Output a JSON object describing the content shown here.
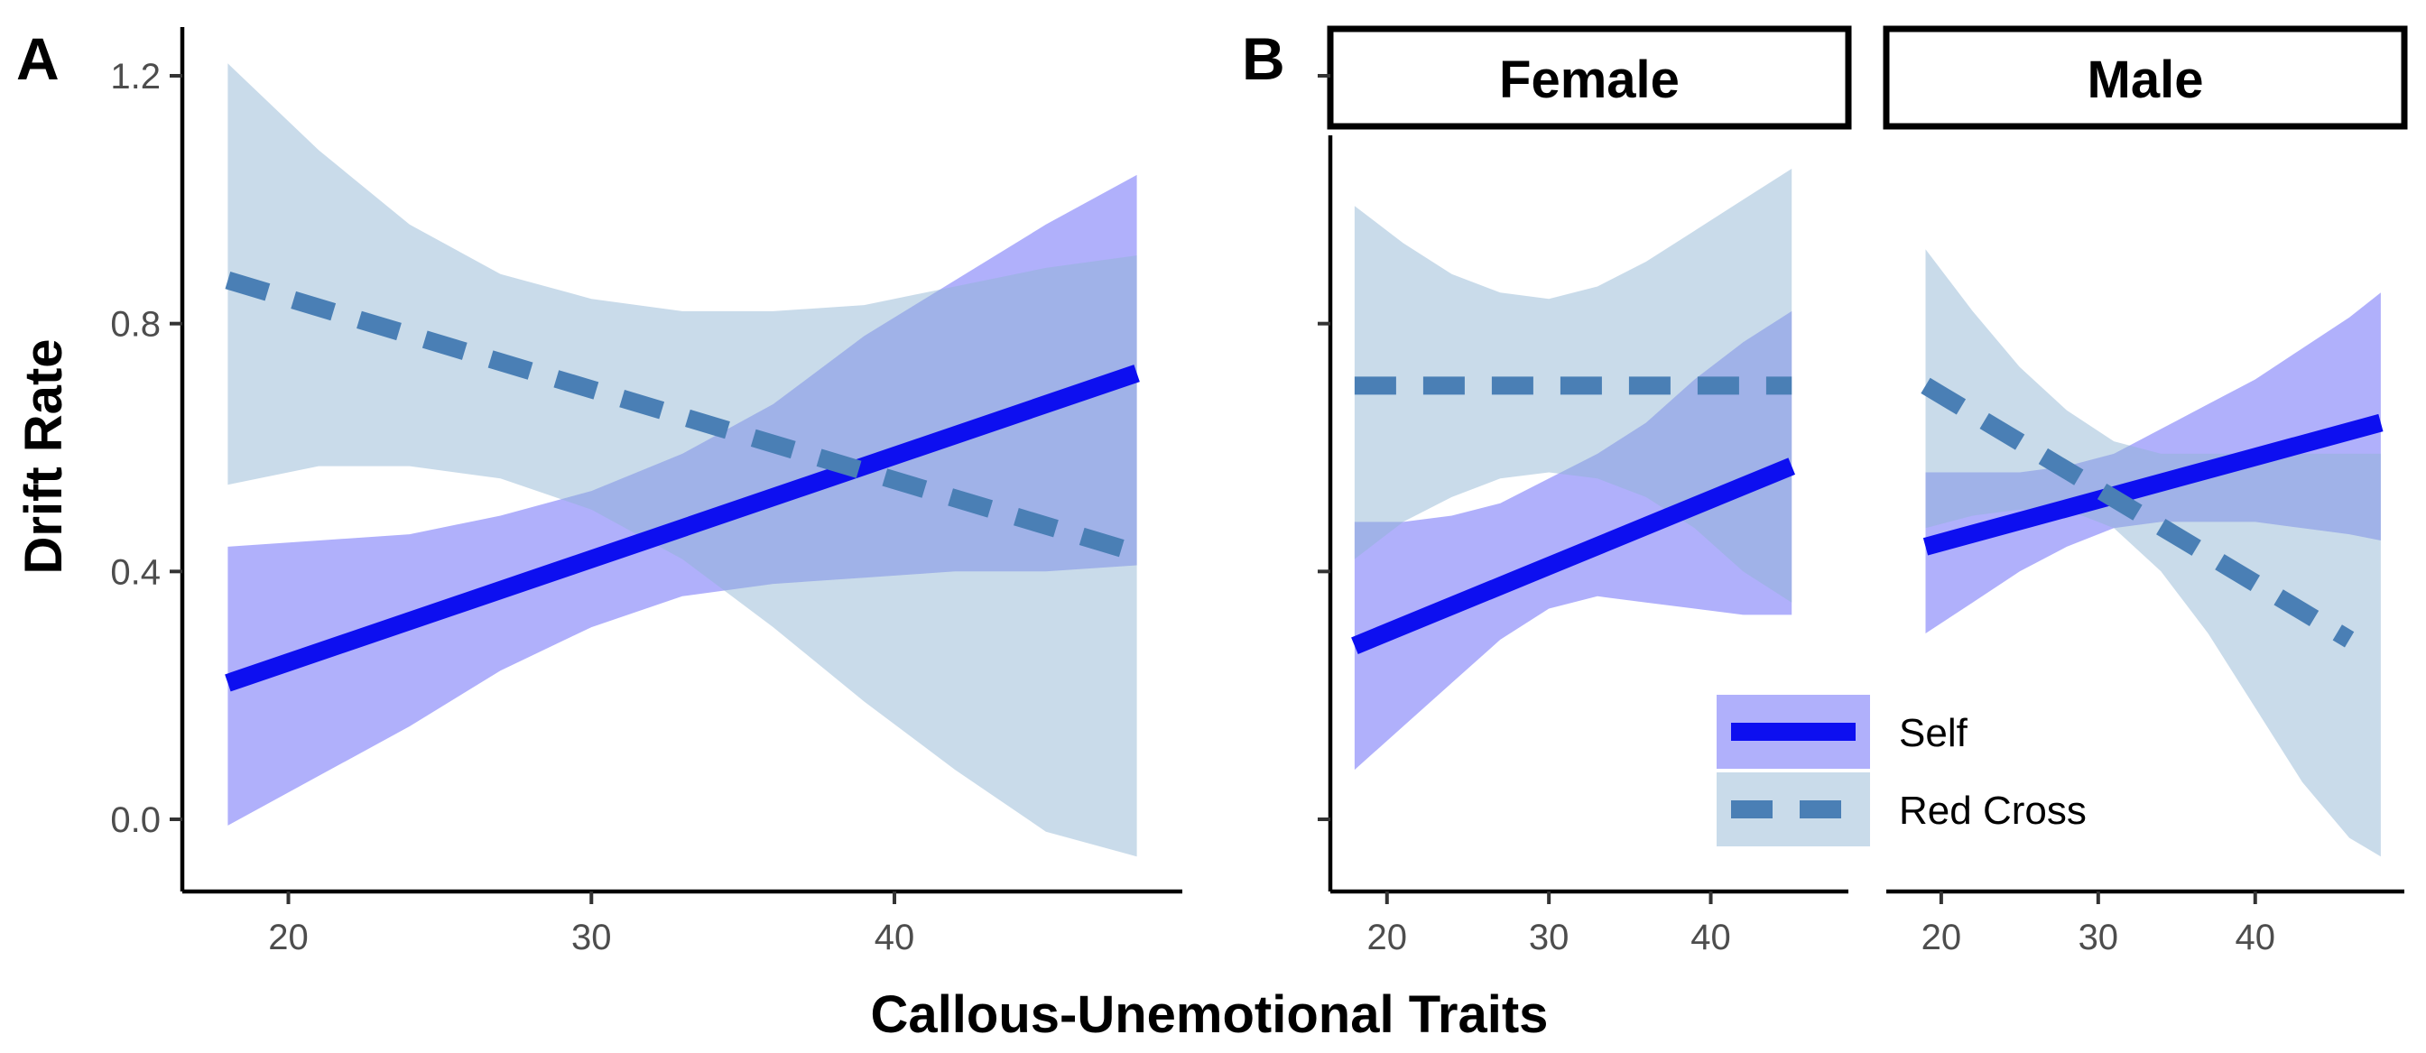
{
  "figure": {
    "panel_a_tag": "A",
    "panel_b_tag": "B",
    "x_title": "Callous-Unemotional Traits",
    "y_title": "Drift Rate"
  },
  "colors": {
    "self_line": "#0d0ff0",
    "self_band": "#6f6ff8",
    "redcross_line": "#4a7fb5",
    "redcross_band": "#8fb3d3"
  },
  "legend": {
    "items": [
      {
        "label": "Self",
        "key": "self"
      },
      {
        "label": "Red Cross",
        "key": "redcross"
      }
    ]
  },
  "chart_data": [
    {
      "type": "line",
      "panel": "A",
      "title": "",
      "xlabel": "Callous-Unemotional Traits",
      "ylabel": "Drift Rate",
      "xlim": [
        16.5,
        49.5
      ],
      "ylim": [
        -0.11,
        1.28
      ],
      "xticks": [
        20,
        30,
        40
      ],
      "yticks": [
        0.0,
        0.4,
        0.8,
        1.2
      ],
      "ytick_labels": [
        "0.0",
        "0.4",
        "0.8",
        "1.2"
      ],
      "series": [
        {
          "name": "Self",
          "style": "solid",
          "x": [
            18,
            48
          ],
          "y": [
            0.22,
            0.72
          ],
          "band_x": [
            18,
            21,
            24,
            27,
            30,
            33,
            36,
            39,
            42,
            45,
            48
          ],
          "band_lower": [
            -0.01,
            0.07,
            0.15,
            0.24,
            0.31,
            0.36,
            0.38,
            0.39,
            0.4,
            0.4,
            0.41
          ],
          "band_upper": [
            0.44,
            0.45,
            0.46,
            0.49,
            0.53,
            0.59,
            0.67,
            0.78,
            0.87,
            0.96,
            1.04
          ]
        },
        {
          "name": "Red Cross",
          "style": "dashed",
          "x": [
            18,
            48
          ],
          "y": [
            0.87,
            0.43
          ],
          "band_x": [
            18,
            21,
            24,
            27,
            30,
            33,
            36,
            39,
            42,
            45,
            48
          ],
          "band_lower": [
            0.54,
            0.57,
            0.57,
            0.55,
            0.5,
            0.42,
            0.31,
            0.19,
            0.08,
            -0.02,
            -0.06
          ],
          "band_upper": [
            1.22,
            1.08,
            0.96,
            0.88,
            0.84,
            0.82,
            0.82,
            0.83,
            0.86,
            0.89,
            0.91
          ]
        }
      ]
    },
    {
      "type": "line",
      "panel": "B",
      "facet": "Female",
      "xlim": [
        16.5,
        48.5
      ],
      "ylim": [
        -0.11,
        1.28
      ],
      "xticks": [
        20,
        30,
        40
      ],
      "yticks": [
        0.0,
        0.4,
        0.8,
        1.2
      ],
      "series": [
        {
          "name": "Self",
          "style": "solid",
          "x": [
            18,
            45
          ],
          "y": [
            0.28,
            0.57
          ],
          "band_x": [
            18,
            21,
            24,
            27,
            30,
            33,
            36,
            39,
            42,
            45
          ],
          "band_lower": [
            0.08,
            0.15,
            0.22,
            0.29,
            0.34,
            0.36,
            0.35,
            0.34,
            0.33,
            0.33
          ],
          "band_upper": [
            0.48,
            0.48,
            0.49,
            0.51,
            0.55,
            0.59,
            0.64,
            0.71,
            0.77,
            0.82
          ]
        },
        {
          "name": "Red Cross",
          "style": "dashed",
          "x": [
            18,
            45
          ],
          "y": [
            0.7,
            0.7
          ],
          "band_x": [
            18,
            21,
            24,
            27,
            30,
            33,
            36,
            39,
            42,
            45
          ],
          "band_lower": [
            0.42,
            0.48,
            0.52,
            0.55,
            0.56,
            0.55,
            0.52,
            0.47,
            0.4,
            0.35
          ],
          "band_upper": [
            0.99,
            0.93,
            0.88,
            0.85,
            0.84,
            0.86,
            0.9,
            0.95,
            1.0,
            1.05
          ]
        }
      ]
    },
    {
      "type": "line",
      "panel": "B",
      "facet": "Male",
      "xlim": [
        16.5,
        49.5
      ],
      "ylim": [
        -0.11,
        1.28
      ],
      "xticks": [
        20,
        30,
        40
      ],
      "yticks": [
        0.0,
        0.4,
        0.8,
        1.2
      ],
      "series": [
        {
          "name": "Self",
          "style": "solid",
          "x": [
            19,
            48
          ],
          "y": [
            0.44,
            0.64
          ],
          "band_x": [
            19,
            22,
            25,
            28,
            31,
            34,
            37,
            40,
            43,
            46,
            48
          ],
          "band_lower": [
            0.3,
            0.35,
            0.4,
            0.44,
            0.47,
            0.48,
            0.48,
            0.48,
            0.47,
            0.46,
            0.45
          ],
          "band_upper": [
            0.56,
            0.56,
            0.56,
            0.57,
            0.59,
            0.63,
            0.67,
            0.71,
            0.76,
            0.81,
            0.85
          ]
        },
        {
          "name": "Red Cross",
          "style": "dashed",
          "x": [
            19,
            46
          ],
          "y": [
            0.7,
            0.29
          ],
          "band_x": [
            19,
            22,
            25,
            28,
            31,
            34,
            37,
            40,
            43,
            46,
            48
          ],
          "band_lower": [
            0.47,
            0.49,
            0.5,
            0.5,
            0.47,
            0.4,
            0.3,
            0.18,
            0.06,
            -0.03,
            -0.06
          ],
          "band_upper": [
            0.92,
            0.82,
            0.73,
            0.66,
            0.61,
            0.59,
            0.59,
            0.59,
            0.59,
            0.59,
            0.59
          ]
        }
      ]
    }
  ],
  "facets": {
    "female_label": "Female",
    "male_label": "Male"
  }
}
